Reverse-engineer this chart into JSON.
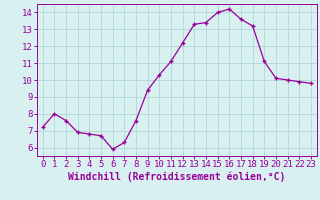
{
  "x": [
    0,
    1,
    2,
    3,
    4,
    5,
    6,
    7,
    8,
    9,
    10,
    11,
    12,
    13,
    14,
    15,
    16,
    17,
    18,
    19,
    20,
    21,
    22,
    23
  ],
  "y": [
    7.2,
    8.0,
    7.6,
    6.9,
    6.8,
    6.7,
    5.9,
    6.3,
    7.6,
    9.4,
    10.3,
    11.1,
    12.2,
    13.3,
    13.4,
    14.0,
    14.2,
    13.6,
    13.2,
    11.1,
    10.1,
    10.0,
    9.9,
    9.8
  ],
  "xlabel": "Windchill (Refroidissement éolien,°C)",
  "line_color": "#990099",
  "marker_color": "#990099",
  "bg_color": "#d8f0f0",
  "grid_color": "#b0d8d8",
  "ylim": [
    5.5,
    14.5
  ],
  "yticks": [
    6,
    7,
    8,
    9,
    10,
    11,
    12,
    13,
    14
  ],
  "xticks": [
    0,
    1,
    2,
    3,
    4,
    5,
    6,
    7,
    8,
    9,
    10,
    11,
    12,
    13,
    14,
    15,
    16,
    17,
    18,
    19,
    20,
    21,
    22,
    23
  ],
  "tick_fontsize": 6.5,
  "xlabel_fontsize": 7
}
